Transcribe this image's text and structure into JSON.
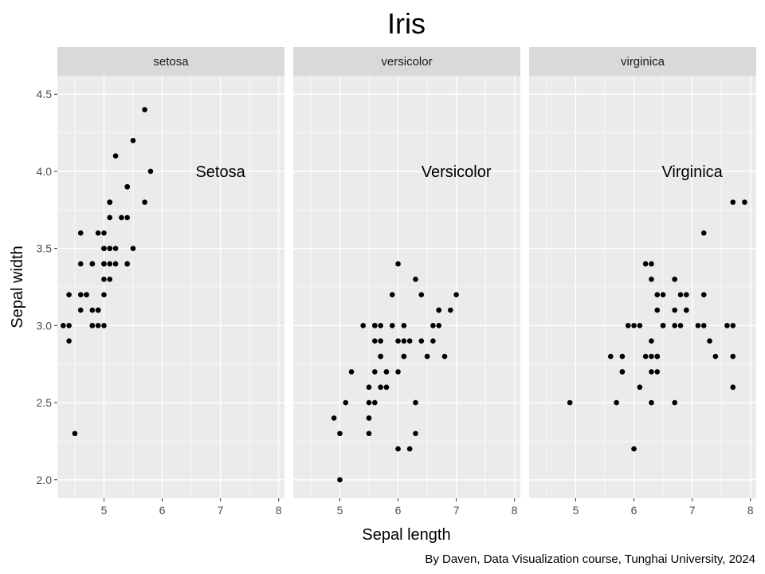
{
  "chart_data": {
    "type": "scatter",
    "title": "Iris",
    "xlabel": "Sepal length",
    "ylabel": "Sepal width",
    "caption": "By Daven, Data Visualization course, Tunghai University, 2024",
    "xlim": [
      4.2,
      8.1
    ],
    "ylim": [
      1.88,
      4.62
    ],
    "x_ticks": [
      5,
      6,
      7,
      8
    ],
    "x_tick_labels": [
      "5",
      "6",
      "7",
      "8"
    ],
    "y_ticks": [
      2.0,
      2.5,
      3.0,
      3.5,
      4.0,
      4.5
    ],
    "y_tick_labels": [
      "2.0",
      "2.5",
      "3.0",
      "3.5",
      "4.0",
      "4.5"
    ],
    "grid": true,
    "colors": {
      "panel_bg": "#ebebeb",
      "strip_bg": "#d9d9d9",
      "grid": "#ffffff",
      "point": "#000000"
    },
    "panels": [
      {
        "strip": "setosa",
        "annotation": {
          "text": "Setosa",
          "x": 7.0,
          "y": 4.0
        },
        "points": [
          [
            5.1,
            3.5
          ],
          [
            4.9,
            3.0
          ],
          [
            4.7,
            3.2
          ],
          [
            4.6,
            3.1
          ],
          [
            5.0,
            3.6
          ],
          [
            5.4,
            3.9
          ],
          [
            4.6,
            3.4
          ],
          [
            5.0,
            3.4
          ],
          [
            4.4,
            2.9
          ],
          [
            4.9,
            3.1
          ],
          [
            5.4,
            3.7
          ],
          [
            4.8,
            3.4
          ],
          [
            4.8,
            3.0
          ],
          [
            4.3,
            3.0
          ],
          [
            5.8,
            4.0
          ],
          [
            5.7,
            4.4
          ],
          [
            5.4,
            3.9
          ],
          [
            5.1,
            3.5
          ],
          [
            5.7,
            3.8
          ],
          [
            5.1,
            3.8
          ],
          [
            5.4,
            3.4
          ],
          [
            5.1,
            3.7
          ],
          [
            4.6,
            3.6
          ],
          [
            5.1,
            3.3
          ],
          [
            4.8,
            3.4
          ],
          [
            5.0,
            3.0
          ],
          [
            5.0,
            3.4
          ],
          [
            5.2,
            3.5
          ],
          [
            5.2,
            3.4
          ],
          [
            4.7,
            3.2
          ],
          [
            4.8,
            3.1
          ],
          [
            5.4,
            3.4
          ],
          [
            5.2,
            4.1
          ],
          [
            5.5,
            4.2
          ],
          [
            4.9,
            3.1
          ],
          [
            5.0,
            3.2
          ],
          [
            5.5,
            3.5
          ],
          [
            4.9,
            3.6
          ],
          [
            4.4,
            3.0
          ],
          [
            5.1,
            3.4
          ],
          [
            5.0,
            3.5
          ],
          [
            4.5,
            2.3
          ],
          [
            4.4,
            3.2
          ],
          [
            5.0,
            3.5
          ],
          [
            5.1,
            3.8
          ],
          [
            4.8,
            3.0
          ],
          [
            5.1,
            3.8
          ],
          [
            4.6,
            3.2
          ],
          [
            5.3,
            3.7
          ],
          [
            5.0,
            3.3
          ]
        ]
      },
      {
        "strip": "versicolor",
        "annotation": {
          "text": "Versicolor",
          "x": 7.0,
          "y": 4.0
        },
        "points": [
          [
            7.0,
            3.2
          ],
          [
            6.4,
            3.2
          ],
          [
            6.9,
            3.1
          ],
          [
            5.5,
            2.3
          ],
          [
            6.5,
            2.8
          ],
          [
            5.7,
            2.8
          ],
          [
            6.3,
            3.3
          ],
          [
            4.9,
            2.4
          ],
          [
            6.6,
            2.9
          ],
          [
            5.2,
            2.7
          ],
          [
            5.0,
            2.0
          ],
          [
            5.9,
            3.0
          ],
          [
            6.0,
            2.2
          ],
          [
            6.1,
            2.9
          ],
          [
            5.6,
            2.9
          ],
          [
            6.7,
            3.1
          ],
          [
            5.6,
            3.0
          ],
          [
            5.8,
            2.7
          ],
          [
            6.2,
            2.2
          ],
          [
            5.6,
            2.5
          ],
          [
            5.9,
            3.2
          ],
          [
            6.1,
            2.8
          ],
          [
            6.3,
            2.5
          ],
          [
            6.1,
            2.8
          ],
          [
            6.4,
            2.9
          ],
          [
            6.6,
            3.0
          ],
          [
            6.8,
            2.8
          ],
          [
            6.7,
            3.0
          ],
          [
            6.0,
            2.9
          ],
          [
            5.7,
            2.6
          ],
          [
            5.5,
            2.4
          ],
          [
            5.5,
            2.4
          ],
          [
            5.8,
            2.7
          ],
          [
            6.0,
            2.7
          ],
          [
            5.4,
            3.0
          ],
          [
            6.0,
            3.4
          ],
          [
            6.7,
            3.1
          ],
          [
            6.3,
            2.3
          ],
          [
            5.6,
            3.0
          ],
          [
            5.5,
            2.5
          ],
          [
            5.5,
            2.6
          ],
          [
            6.1,
            3.0
          ],
          [
            5.8,
            2.6
          ],
          [
            5.0,
            2.3
          ],
          [
            5.6,
            2.7
          ],
          [
            5.7,
            3.0
          ],
          [
            5.7,
            2.9
          ],
          [
            6.2,
            2.9
          ],
          [
            5.1,
            2.5
          ],
          [
            5.7,
            2.8
          ]
        ]
      },
      {
        "strip": "virginica",
        "annotation": {
          "text": "Virginica",
          "x": 7.0,
          "y": 4.0
        },
        "points": [
          [
            6.3,
            3.3
          ],
          [
            5.8,
            2.7
          ],
          [
            7.1,
            3.0
          ],
          [
            6.3,
            2.9
          ],
          [
            6.5,
            3.0
          ],
          [
            7.6,
            3.0
          ],
          [
            4.9,
            2.5
          ],
          [
            7.3,
            2.9
          ],
          [
            6.7,
            2.5
          ],
          [
            7.2,
            3.6
          ],
          [
            6.5,
            3.2
          ],
          [
            6.4,
            2.7
          ],
          [
            6.8,
            3.0
          ],
          [
            5.7,
            2.5
          ],
          [
            5.8,
            2.8
          ],
          [
            6.4,
            3.2
          ],
          [
            6.5,
            3.0
          ],
          [
            7.7,
            3.8
          ],
          [
            7.7,
            2.6
          ],
          [
            6.0,
            2.2
          ],
          [
            6.9,
            3.2
          ],
          [
            5.6,
            2.8
          ],
          [
            7.7,
            2.8
          ],
          [
            6.3,
            2.7
          ],
          [
            6.7,
            3.3
          ],
          [
            7.2,
            3.2
          ],
          [
            6.2,
            2.8
          ],
          [
            6.1,
            3.0
          ],
          [
            6.4,
            2.8
          ],
          [
            7.2,
            3.0
          ],
          [
            7.4,
            2.8
          ],
          [
            7.9,
            3.8
          ],
          [
            6.4,
            2.8
          ],
          [
            6.3,
            2.8
          ],
          [
            6.1,
            2.6
          ],
          [
            7.7,
            3.0
          ],
          [
            6.3,
            3.4
          ],
          [
            6.4,
            3.1
          ],
          [
            6.0,
            3.0
          ],
          [
            6.9,
            3.1
          ],
          [
            6.7,
            3.1
          ],
          [
            6.9,
            3.1
          ],
          [
            5.8,
            2.7
          ],
          [
            6.8,
            3.2
          ],
          [
            6.7,
            3.3
          ],
          [
            6.7,
            3.0
          ],
          [
            6.3,
            2.5
          ],
          [
            6.5,
            3.0
          ],
          [
            6.2,
            3.4
          ],
          [
            5.9,
            3.0
          ]
        ]
      }
    ]
  }
}
